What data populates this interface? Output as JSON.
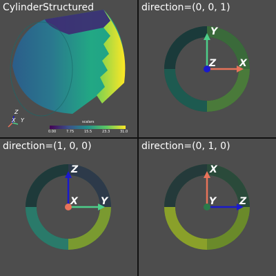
{
  "panes": {
    "top_left": {
      "title": "CylinderStructured",
      "scalar_bar": {
        "title": "scalars",
        "ticks": [
          "0.00",
          "7.75",
          "15.5",
          "23.3",
          "31.0"
        ]
      },
      "orient_labels": {
        "x": "X",
        "y": "Y",
        "z": "Z"
      }
    },
    "top_right": {
      "title": "direction=(0, 0, 1)",
      "axes": {
        "up": "Y",
        "right": "X",
        "center": "Z"
      }
    },
    "bottom_left": {
      "title": "direction=(1, 0, 0)",
      "axes": {
        "up": "Z",
        "right": "Y",
        "center": "X"
      }
    },
    "bottom_right": {
      "title": "direction=(0, 1, 0)",
      "axes": {
        "up": "X",
        "right": "Z",
        "center": "Y"
      }
    }
  },
  "colors": {
    "background": "#4d4d4d",
    "x_axis": "#e8735a",
    "y_axis": "#4dcf8a",
    "z_axis": "#1a1acc"
  }
}
